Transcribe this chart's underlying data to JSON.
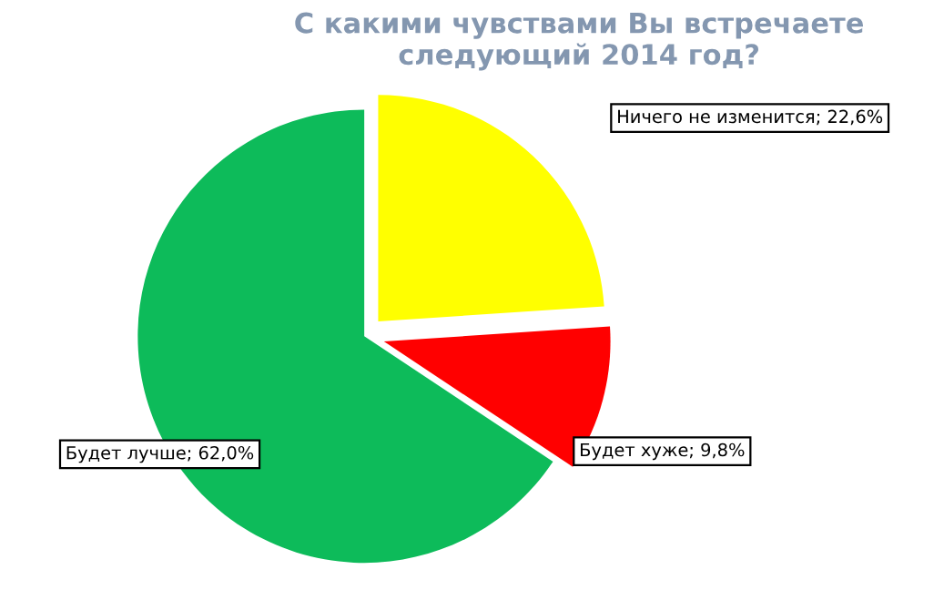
{
  "chart_data": {
    "type": "pie",
    "title": "С какими чувствами Вы встречаете следующий 2014 год?",
    "categories": [
      "Ничего не изменится",
      "Будет хуже",
      "Будет лучше"
    ],
    "values": [
      22.6,
      9.8,
      62.0
    ],
    "value_labels": [
      "22,6%",
      "9,8%",
      "62,0%"
    ],
    "colors": [
      "#ffff00",
      "#ff0000",
      "#0dbb5a"
    ],
    "legend": false
  }
}
